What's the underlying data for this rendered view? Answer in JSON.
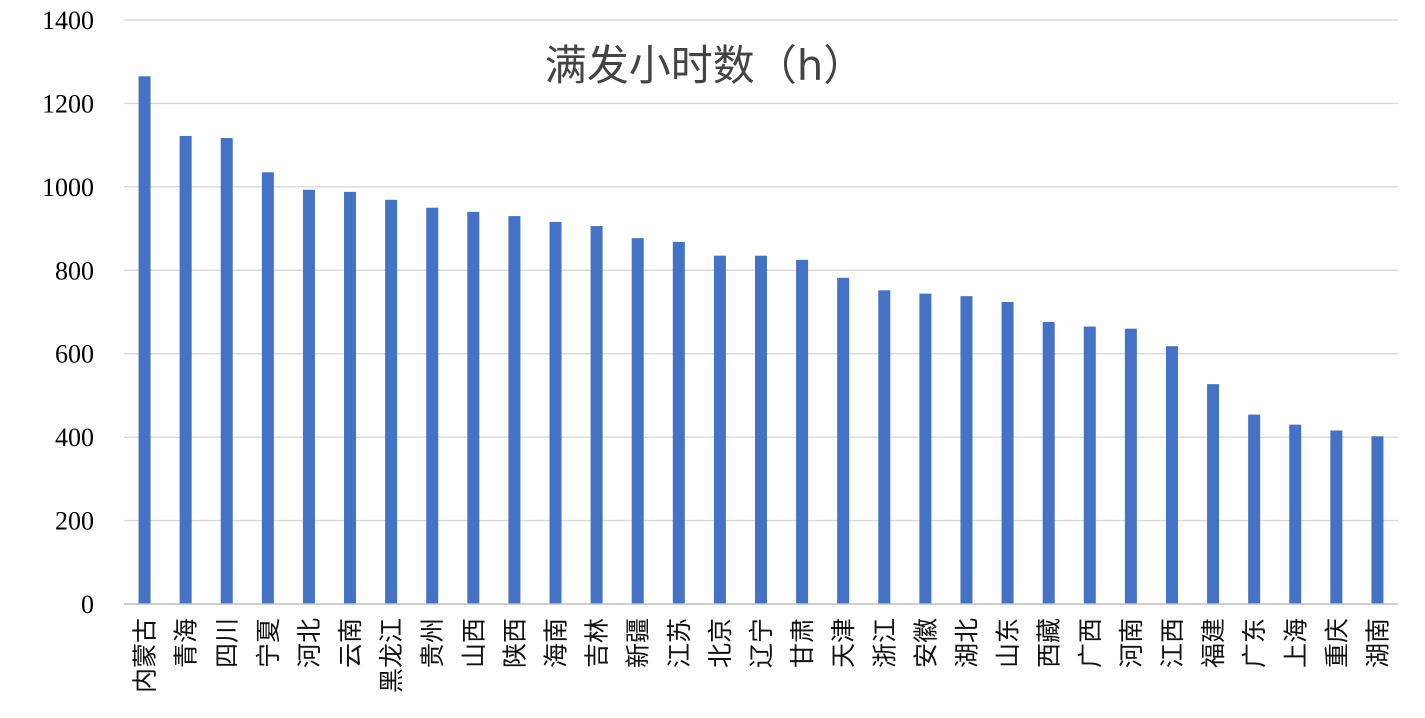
{
  "chart_data": {
    "type": "bar",
    "title": "满发小时数（h）",
    "xlabel": "",
    "ylabel": "",
    "ylim": [
      0,
      1400
    ],
    "yticks": [
      0,
      200,
      400,
      600,
      800,
      1000,
      1200,
      1400
    ],
    "grid": true,
    "legend": "none",
    "bar_color": "#4472c4",
    "categories": [
      "内蒙古",
      "青海",
      "四川",
      "宁夏",
      "河北",
      "云南",
      "黑龙江",
      "贵州",
      "山西",
      "陕西",
      "海南",
      "吉林",
      "新疆",
      "江苏",
      "北京",
      "辽宁",
      "甘肃",
      "天津",
      "浙江",
      "安徽",
      "湖北",
      "山东",
      "西藏",
      "广西",
      "河南",
      "江西",
      "福建",
      "广东",
      "上海",
      "重庆",
      "湖南"
    ],
    "values": [
      1265,
      1122,
      1117,
      1035,
      993,
      988,
      969,
      950,
      940,
      930,
      916,
      906,
      877,
      868,
      835,
      835,
      825,
      782,
      752,
      744,
      738,
      724,
      676,
      665,
      660,
      618,
      527,
      454,
      430,
      416,
      402
    ]
  }
}
